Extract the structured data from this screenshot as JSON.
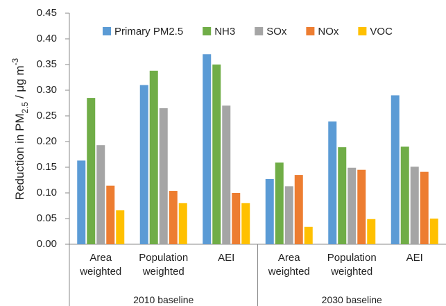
{
  "chart_data": {
    "type": "bar",
    "y_label": [
      "Reduction in PM",
      "2.5",
      " /  μg m",
      "-3"
    ],
    "categories": [
      "Area weighted",
      "Population weighted",
      "AEI",
      "Area weighted",
      "Population weighted",
      "AEI"
    ],
    "groups": [
      "2010 baseline",
      "2030 baseline"
    ],
    "series": [
      {
        "name": "Primary PM2.5",
        "color": "#5b9bd5",
        "values": [
          0.163,
          0.31,
          0.37,
          0.127,
          0.239,
          0.29
        ]
      },
      {
        "name": "NH3",
        "color": "#70ad47",
        "values": [
          0.285,
          0.338,
          0.35,
          0.159,
          0.189,
          0.19
        ]
      },
      {
        "name": "SOx",
        "color": "#a5a5a5",
        "values": [
          0.193,
          0.265,
          0.27,
          0.113,
          0.149,
          0.151
        ]
      },
      {
        "name": "NOx",
        "color": "#ed7d31",
        "values": [
          0.114,
          0.104,
          0.1,
          0.135,
          0.145,
          0.141
        ]
      },
      {
        "name": "VOC",
        "color": "#ffc000",
        "values": [
          0.066,
          0.08,
          0.08,
          0.034,
          0.049,
          0.05
        ]
      }
    ],
    "ylim": [
      0,
      0.45
    ],
    "yticks": [
      {
        "value": 0,
        "label": "0.00"
      },
      0.05,
      {
        "value": 0.1,
        "label": "0.10"
      },
      0.15,
      {
        "value": 0.2,
        "label": "0.20"
      },
      0.25,
      {
        "value": 0.3,
        "label": "0.30"
      },
      0.35,
      {
        "value": 0.4,
        "label": "0.40"
      },
      0.45
    ],
    "legend": "top"
  }
}
